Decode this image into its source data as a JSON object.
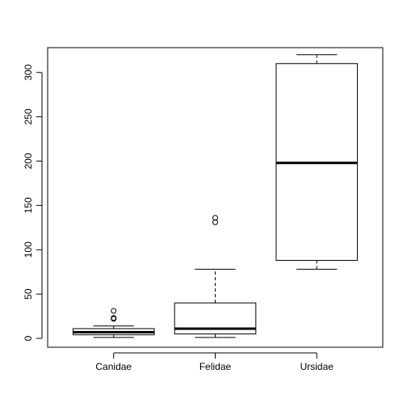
{
  "chart_data": {
    "type": "box",
    "title": "",
    "xlabel": "",
    "ylabel": "",
    "ylim": [
      -10,
      328
    ],
    "yticks": [
      0,
      50,
      100,
      150,
      200,
      250,
      300
    ],
    "categories": [
      "Canidae",
      "Felidae",
      "Ursidae"
    ],
    "boxes": [
      {
        "name": "Canidae",
        "whisker_low": 1,
        "q1": 4,
        "median": 7,
        "q3": 11,
        "whisker_high": 14,
        "outliers": [
          22,
          23,
          31
        ]
      },
      {
        "name": "Felidae",
        "whisker_low": 1,
        "q1": 5,
        "median": 11,
        "q3": 40,
        "whisker_high": 78,
        "outliers": [
          131,
          136
        ]
      },
      {
        "name": "Ursidae",
        "whisker_low": 78,
        "q1": 88,
        "median": 198,
        "q3": 310,
        "whisker_high": 320,
        "outliers": []
      }
    ],
    "grid": false
  }
}
